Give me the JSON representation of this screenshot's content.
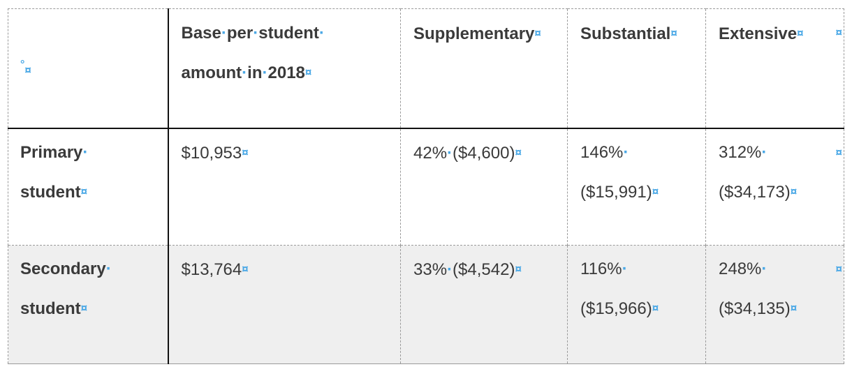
{
  "table": {
    "header": {
      "empty_cell": "",
      "base_per_student_line1": "Base per student",
      "base_per_student_line2": "amount in 2018",
      "supplementary": "Supplementary",
      "substantial": "Substantial",
      "extensive": "Extensive"
    },
    "rows": [
      {
        "label_line1": "Primary",
        "label_line2": "student",
        "base": "$10,953",
        "supplementary": "42% ($4,600)",
        "substantial_line1": "146%",
        "substantial_line2": "($15,991)",
        "extensive_line1": "312%",
        "extensive_line2": "($34,173)"
      },
      {
        "label_line1": "Secondary",
        "label_line2": "student",
        "base": "$13,764",
        "supplementary": "33% ($4,542)",
        "substantial_line1": "116%",
        "substantial_line2": "($15,966)",
        "extensive_line1": "248%",
        "extensive_line2": "($34,135)"
      }
    ]
  },
  "formatting_marks": {
    "cell_end": "¤",
    "space_dot": "·",
    "anchor": "°"
  },
  "colors": {
    "formatting_mark": "#4aa8e6",
    "text": "#3a3a3a",
    "shaded_row": "#efefef",
    "solid_border": "#111111"
  }
}
